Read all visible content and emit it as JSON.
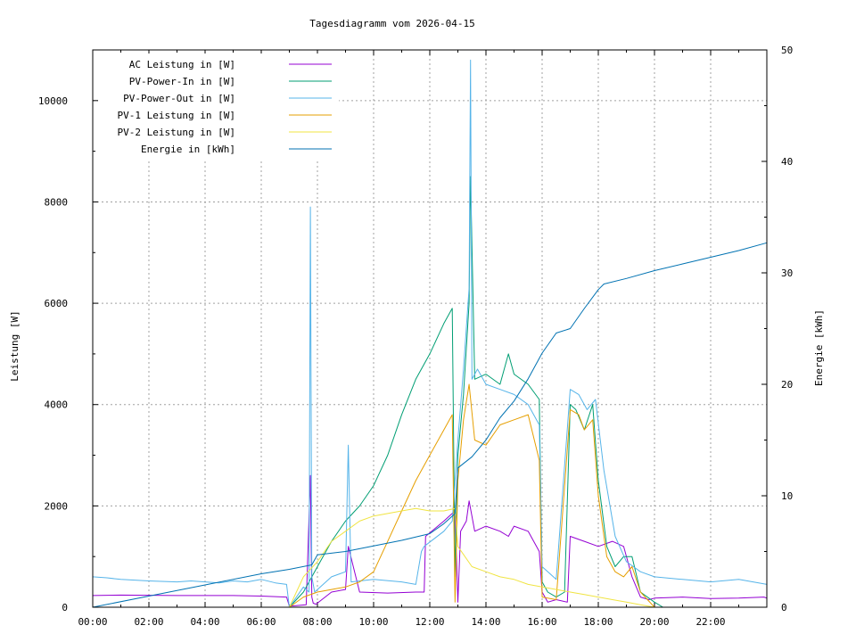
{
  "chart_data": {
    "type": "line",
    "title": "Tagesdiagramm vom 2026-04-15",
    "ylabel": "Leistung [W]",
    "y2label": "Energie [kWh]",
    "xlabel": "",
    "xlim": [
      0,
      24
    ],
    "ylim": [
      0,
      11000
    ],
    "y2lim": [
      0,
      50
    ],
    "x_ticks": [
      "00:00",
      "02:00",
      "04:00",
      "06:00",
      "08:00",
      "10:00",
      "12:00",
      "14:00",
      "16:00",
      "18:00",
      "20:00",
      "22:00"
    ],
    "y_ticks": [
      0,
      2000,
      4000,
      6000,
      8000,
      10000
    ],
    "y2_ticks": [
      0,
      10,
      20,
      30,
      40,
      50
    ],
    "grid": true,
    "legend_position": "top-left",
    "series": [
      {
        "name": "AC Leistung in [W]",
        "color": "#9400d3",
        "axis": "left",
        "x": [
          0.0,
          1.0,
          3.0,
          5.0,
          6.0,
          6.9,
          7.0,
          7.6,
          7.75,
          7.8,
          7.85,
          7.95,
          8.5,
          9.0,
          9.1,
          9.5,
          10.5,
          11.5,
          11.8,
          11.85,
          12.5,
          12.9,
          13.0,
          13.1,
          13.3,
          13.4,
          13.6,
          14.0,
          14.5,
          14.8,
          15.0,
          15.5,
          15.9,
          16.0,
          16.2,
          16.5,
          16.9,
          17.0,
          17.5,
          18.0,
          18.5,
          18.9,
          19.2,
          19.5,
          19.8,
          20.0,
          21.0,
          22.0,
          23.0,
          23.9,
          24.0
        ],
        "y": [
          230,
          240,
          230,
          230,
          220,
          200,
          20,
          50,
          2600,
          200,
          80,
          60,
          300,
          350,
          1200,
          300,
          280,
          300,
          300,
          1400,
          1700,
          1900,
          100,
          1500,
          1700,
          2100,
          1500,
          1600,
          1500,
          1400,
          1600,
          1500,
          1100,
          300,
          100,
          150,
          100,
          1400,
          1300,
          1200,
          1300,
          1200,
          600,
          200,
          150,
          180,
          200,
          170,
          180,
          200,
          180
        ]
      },
      {
        "name": "PV-Power-In in [W]",
        "color": "#009e73",
        "axis": "left",
        "x": [
          7.0,
          7.5,
          8.0,
          8.5,
          9.0,
          9.5,
          10.0,
          10.5,
          11.0,
          11.5,
          12.0,
          12.5,
          12.8,
          12.9,
          13.0,
          13.2,
          13.4,
          13.45,
          13.6,
          14.0,
          14.5,
          14.8,
          15.0,
          15.5,
          15.9,
          16.0,
          16.2,
          16.5,
          16.8,
          17.0,
          17.2,
          17.5,
          17.8,
          18.0,
          18.3,
          18.6,
          18.9,
          19.2,
          19.5,
          20.0,
          20.3
        ],
        "y": [
          0,
          300,
          800,
          1300,
          1700,
          2000,
          2400,
          3000,
          3800,
          4500,
          5000,
          5600,
          5900,
          600,
          3000,
          4200,
          6000,
          8500,
          4500,
          4600,
          4400,
          5000,
          4600,
          4400,
          4100,
          500,
          300,
          200,
          300,
          4000,
          3900,
          3500,
          4000,
          2500,
          1200,
          800,
          1000,
          1000,
          300,
          100,
          0
        ]
      },
      {
        "name": "PV-Power-Out in [W]",
        "color": "#56b4e9",
        "axis": "left",
        "x": [
          0.0,
          0.5,
          1.0,
          2.0,
          3.0,
          3.5,
          4.0,
          4.5,
          5.0,
          5.5,
          6.0,
          6.5,
          6.9,
          7.0,
          7.5,
          7.7,
          7.75,
          7.8,
          7.9,
          8.5,
          9.0,
          9.1,
          9.2,
          10.0,
          11.0,
          11.5,
          11.7,
          11.8,
          12.5,
          12.8,
          13.0,
          13.2,
          13.4,
          13.45,
          13.5,
          13.7,
          14.0,
          14.5,
          15.0,
          15.5,
          15.9,
          16.0,
          16.5,
          17.0,
          17.3,
          17.6,
          17.9,
          18.2,
          18.6,
          19.0,
          19.5,
          20.0,
          21.0,
          22.0,
          23.0,
          24.0
        ],
        "y": [
          600,
          580,
          550,
          520,
          500,
          520,
          500,
          480,
          520,
          500,
          550,
          480,
          450,
          0,
          400,
          300,
          7900,
          600,
          300,
          600,
          700,
          3200,
          500,
          550,
          500,
          450,
          1100,
          1200,
          1500,
          1700,
          3300,
          4700,
          6300,
          10800,
          4500,
          4700,
          4400,
          4300,
          4200,
          4000,
          3600,
          800,
          550,
          4300,
          4200,
          3900,
          4100,
          2700,
          1400,
          900,
          700,
          600,
          550,
          500,
          550,
          450
        ]
      },
      {
        "name": "PV-1 Leistung in [W]",
        "color": "#e69f00",
        "axis": "left",
        "x": [
          7.0,
          7.5,
          8.0,
          8.5,
          9.0,
          9.5,
          10.0,
          10.5,
          11.0,
          11.5,
          12.0,
          12.5,
          12.8,
          12.9,
          13.0,
          13.2,
          13.4,
          13.6,
          14.0,
          14.5,
          15.0,
          15.5,
          15.9,
          16.0,
          16.5,
          17.0,
          17.3,
          17.5,
          17.8,
          18.0,
          18.3,
          18.6,
          18.9,
          19.2,
          19.5,
          20.0
        ],
        "y": [
          0,
          200,
          300,
          350,
          400,
          500,
          700,
          1300,
          1900,
          2500,
          3000,
          3500,
          3800,
          100,
          2500,
          3700,
          4400,
          3300,
          3200,
          3600,
          3700,
          3800,
          2900,
          200,
          150,
          3900,
          3800,
          3500,
          3700,
          2200,
          1000,
          700,
          600,
          800,
          300,
          0
        ]
      },
      {
        "name": "PV-2 Leistung in [W]",
        "color": "#f0e442",
        "axis": "left",
        "x": [
          7.0,
          7.5,
          8.0,
          8.5,
          9.0,
          9.5,
          10.0,
          10.5,
          11.0,
          11.5,
          12.0,
          12.5,
          12.9,
          13.0,
          13.5,
          14.0,
          14.5,
          15.0,
          15.5,
          16.0,
          16.5,
          17.0,
          17.5,
          18.0,
          18.5,
          19.0,
          19.5,
          20.0
        ],
        "y": [
          0,
          600,
          900,
          1300,
          1500,
          1700,
          1800,
          1850,
          1900,
          1950,
          1900,
          1900,
          1950,
          1200,
          800,
          700,
          600,
          550,
          450,
          400,
          350,
          300,
          250,
          200,
          150,
          100,
          50,
          0
        ]
      },
      {
        "name": "Energie in [kWh]",
        "color": "#0072b2",
        "axis": "right",
        "x": [
          0.0,
          2.0,
          4.0,
          6.0,
          7.0,
          7.8,
          8.0,
          9.0,
          10.0,
          11.0,
          12.0,
          12.5,
          12.9,
          13.0,
          13.5,
          14.0,
          14.5,
          15.0,
          15.5,
          16.0,
          16.5,
          17.0,
          17.5,
          18.0,
          18.2,
          19.0,
          20.0,
          21.0,
          22.0,
          23.0,
          24.0
        ],
        "y": [
          0.0,
          1.0,
          2.0,
          3.0,
          3.4,
          3.8,
          4.7,
          5.0,
          5.5,
          6.0,
          6.6,
          7.5,
          8.4,
          12.5,
          13.5,
          15.0,
          17.0,
          18.5,
          20.5,
          22.8,
          24.6,
          25.0,
          26.8,
          28.5,
          29.0,
          29.5,
          30.2,
          30.8,
          31.4,
          32.0,
          32.7
        ]
      }
    ]
  }
}
